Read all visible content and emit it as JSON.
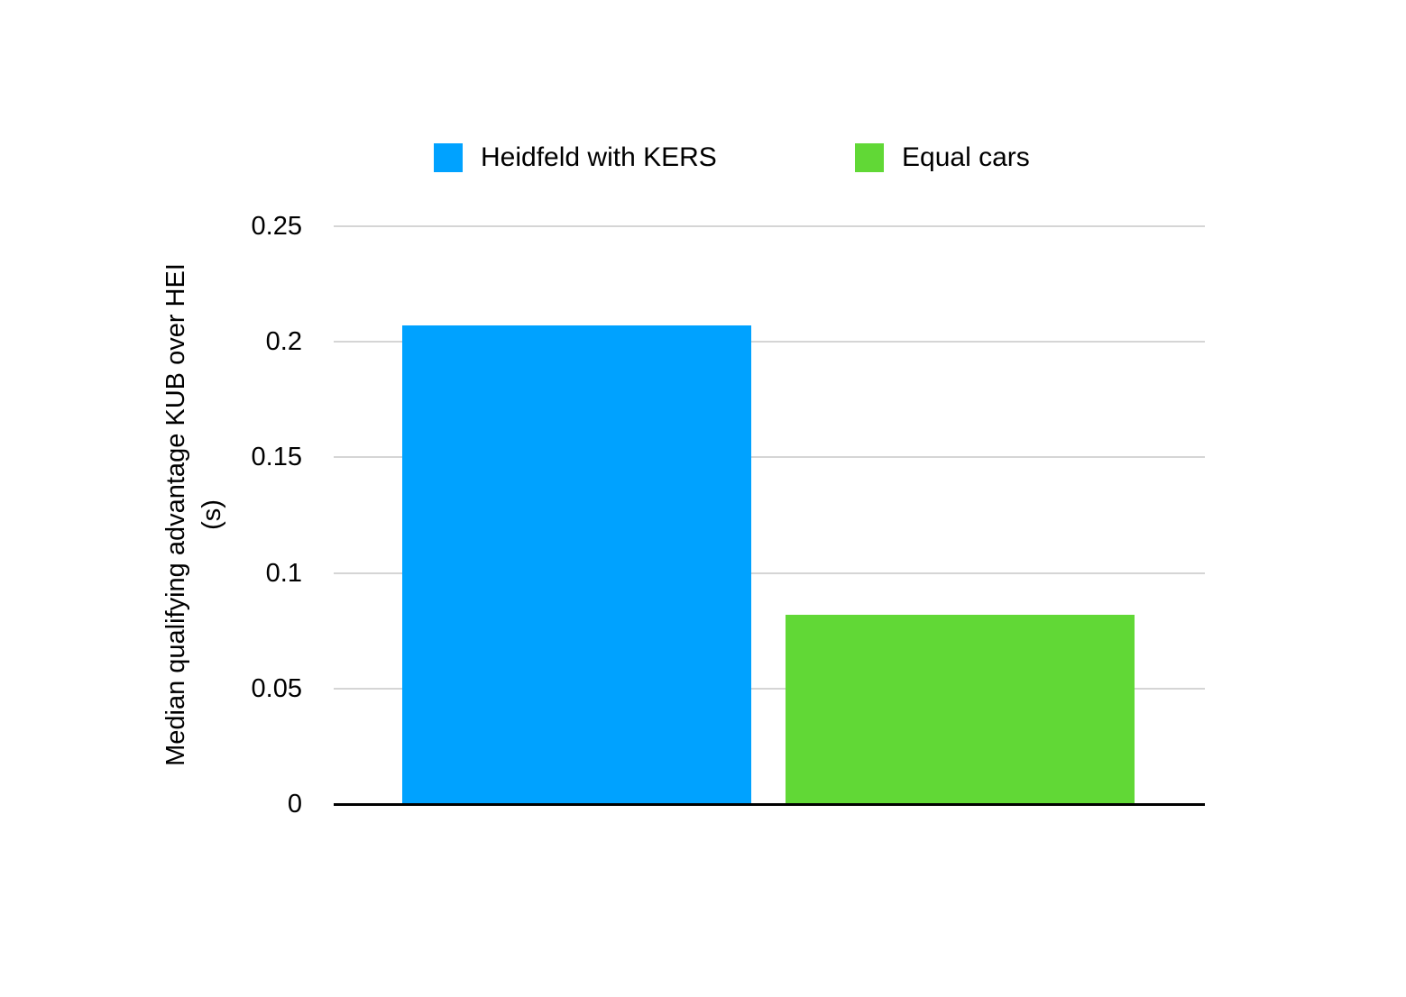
{
  "chart_data": {
    "type": "bar",
    "title": "",
    "xlabel": "",
    "ylabel_lines": [
      "Median qualifying advantage KUB over HEI",
      "(s)"
    ],
    "ylim": [
      0,
      0.25
    ],
    "yticks": [
      0.25,
      0.2,
      0.15,
      0.1,
      0.05,
      0
    ],
    "ytick_labels": [
      "0.25",
      "0.2",
      "0.15",
      "0.1",
      "0.05",
      "0"
    ],
    "grid": true,
    "legend_position": "top",
    "categories": [
      ""
    ],
    "series": [
      {
        "name": "Heidfeld with KERS",
        "value": 0.207,
        "color": "#00A2FF"
      },
      {
        "name": "Equal cars",
        "value": 0.082,
        "color": "#61D836"
      }
    ]
  },
  "colors": {
    "background": "#FFFFFF",
    "gridline": "#D5D5D5",
    "axis_line": "#000000",
    "text": "#000000"
  }
}
